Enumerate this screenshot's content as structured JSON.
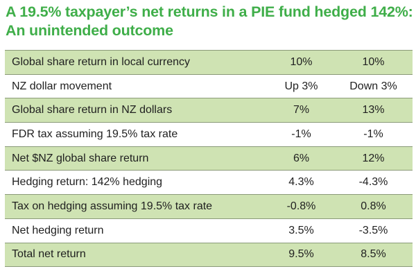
{
  "title": "A 19.5% taxpayer’s net returns in a PIE fund hedged 142%: An unintended outcome",
  "table": {
    "rows": [
      {
        "label": "Global share return in local currency",
        "a": "10%",
        "b": "10%"
      },
      {
        "label": "NZ dollar movement",
        "a": "Up 3%",
        "b": "Down 3%"
      },
      {
        "label": "Global share return in NZ dollars",
        "a": "7%",
        "b": "13%"
      },
      {
        "label": "FDR tax assuming 19.5% tax rate",
        "a": "-1%",
        "b": "-1%"
      },
      {
        "label": "Net $NZ global share return",
        "a": "6%",
        "b": "12%"
      },
      {
        "label": "Hedging return: 142% hedging",
        "a": "4.3%",
        "b": "-4.3%"
      },
      {
        "label": "Tax on hedging assuming 19.5% tax rate",
        "a": "-0.8%",
        "b": "0.8%"
      },
      {
        "label": "Net hedging return",
        "a": "3.5%",
        "b": "-3.5%"
      },
      {
        "label": "Total net return",
        "a": "9.5%",
        "b": "8.5%"
      }
    ]
  },
  "colors": {
    "title": "#3fae49",
    "shaded_row": "#cfe3b3",
    "plain_row": "#ffffff"
  }
}
